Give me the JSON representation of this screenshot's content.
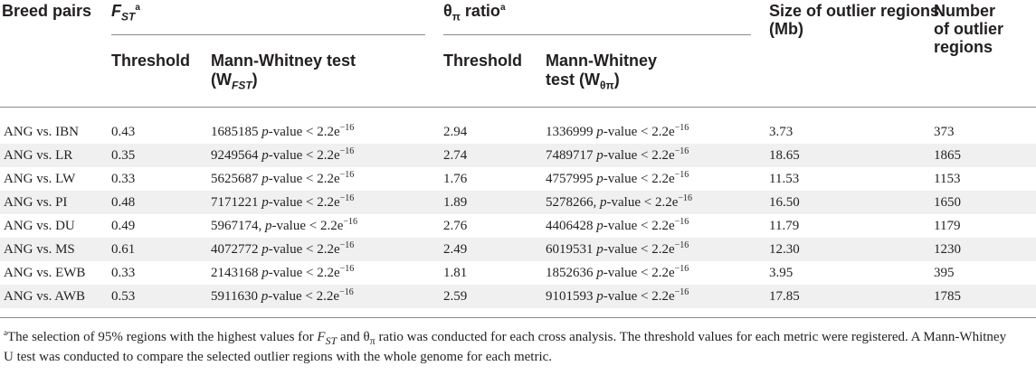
{
  "headers": {
    "breed_pairs": "Breed pairs",
    "fst_main": "F",
    "fst_sub": "ST",
    "fst_sup": "a",
    "theta_symbol": "θ",
    "theta_sub": "π",
    "theta_word": " ratio",
    "theta_sup": "a",
    "size_line1": "Size of outlier regions",
    "size_line2": "(Mb)",
    "number_line1": "Number",
    "number_line2": "of outlier",
    "number_line3": "regions"
  },
  "subheaders": {
    "fst_threshold": "Threshold",
    "fst_mw_line1": "Mann-Whitney test",
    "fst_mw_line2_pre": "(W",
    "fst_mw_line2_sub": "FST",
    "fst_mw_line2_post": ")",
    "theta_threshold": "Threshold",
    "theta_mw_line1": "Mann-Whitney",
    "theta_mw_line2_pre": "test (W",
    "theta_mw_line2_sub": "θπ",
    "theta_mw_line2_post": ")"
  },
  "pvalue": {
    "italic": "p",
    "rest": "-value < 2.2e",
    "exp": "−16"
  },
  "rows": [
    {
      "pair": "ANG vs. IBN",
      "fst_threshold": "0.43",
      "fst_w": "1685185 ",
      "theta_threshold": "2.94",
      "theta_w": "1336999 ",
      "size": "3.73",
      "number": "373"
    },
    {
      "pair": "ANG vs. LR",
      "fst_threshold": "0.35",
      "fst_w": "9249564 ",
      "theta_threshold": "2.74",
      "theta_w": "7489717 ",
      "size": "18.65",
      "number": "1865"
    },
    {
      "pair": "ANG vs. LW",
      "fst_threshold": "0.33",
      "fst_w": "5625687 ",
      "theta_threshold": "1.76",
      "theta_w": "4757995 ",
      "size": "11.53",
      "number": "1153"
    },
    {
      "pair": "ANG vs. PI",
      "fst_threshold": "0.48",
      "fst_w": "7171221 ",
      "theta_threshold": "1.89",
      "theta_w": "5278266, ",
      "size": "16.50",
      "number": "1650"
    },
    {
      "pair": "ANG vs. DU",
      "fst_threshold": "0.49",
      "fst_w": "5967174, ",
      "theta_threshold": "2.76",
      "theta_w": "4406428 ",
      "size": "11.79",
      "number": "1179"
    },
    {
      "pair": "ANG vs. MS",
      "fst_threshold": "0.61",
      "fst_w": "4072772 ",
      "theta_threshold": "2.49",
      "theta_w": "6019531 ",
      "size": "12.30",
      "number": "1230"
    },
    {
      "pair": "ANG vs. EWB",
      "fst_threshold": "0.33",
      "fst_w": "2143168 ",
      "theta_threshold": "1.81",
      "theta_w": "1852636 ",
      "size": "3.95",
      "number": "395"
    },
    {
      "pair": "ANG vs. AWB",
      "fst_threshold": "0.53",
      "fst_w": "5911630 ",
      "theta_threshold": "2.59",
      "theta_w": "9101593 ",
      "size": "17.85",
      "number": "1785"
    }
  ],
  "footnote": {
    "sup": "a",
    "part1": "The selection of 95% regions with the highest values for ",
    "f": "F",
    "st": "ST",
    "part2": " and θ",
    "pi": "π",
    "part3": " ratio was conducted for each cross analysis. The threshold values for each metric were registered. A Mann-Whitney U test was conducted to compare the selected outlier regions with the whole genome for each metric."
  }
}
